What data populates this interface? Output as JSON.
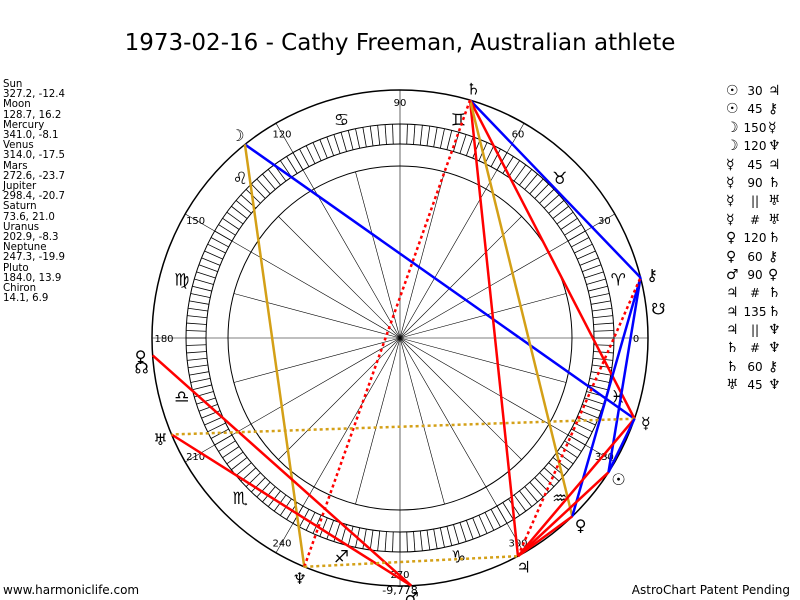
{
  "title": "1973-02-16 - Cathy Freeman, Australian athlete",
  "footer": {
    "left": "www.harmoniclife.com",
    "right": "AstroChart Patent Pending"
  },
  "bottom_readout": "-9,778",
  "positions": [
    {
      "name": "Sun",
      "coords": "327.2, -12.4"
    },
    {
      "name": "Moon",
      "coords": "128.7, 16.2"
    },
    {
      "name": "Mercury",
      "coords": "341.0, -8.1"
    },
    {
      "name": "Venus",
      "coords": "314.0, -17.5"
    },
    {
      "name": "Mars",
      "coords": "272.6, -23.7"
    },
    {
      "name": "Jupiter",
      "coords": "298.4, -20.7"
    },
    {
      "name": "Saturn",
      "coords": "73.6, 21.0"
    },
    {
      "name": "Uranus",
      "coords": "202.9, -8.3"
    },
    {
      "name": "Neptune",
      "coords": "247.3, -19.9"
    },
    {
      "name": "Pluto",
      "coords": "184.0, 13.9"
    },
    {
      "name": "Chiron",
      "coords": "14.1, 6.9"
    }
  ],
  "aspect_list": [
    {
      "p1": "☉",
      "value": "30",
      "p2": "♃"
    },
    {
      "p1": "☉",
      "value": "45",
      "p2": "⚷"
    },
    {
      "p1": "☽",
      "value": "150",
      "p2": "☿"
    },
    {
      "p1": "☽",
      "value": "120",
      "p2": "♆"
    },
    {
      "p1": "☿",
      "value": "45",
      "p2": "♃"
    },
    {
      "p1": "☿",
      "value": "90",
      "p2": "♄"
    },
    {
      "p1": "☿",
      "value": "||",
      "p2": "♅"
    },
    {
      "p1": "☿",
      "value": "#",
      "p2": "♅"
    },
    {
      "p1": "♀",
      "value": "120",
      "p2": "♄"
    },
    {
      "p1": "♀",
      "value": "60",
      "p2": "⚷"
    },
    {
      "p1": "♂",
      "value": "90",
      "p2": "♀"
    },
    {
      "p1": "♃",
      "value": "#",
      "p2": "♄"
    },
    {
      "p1": "♃",
      "value": "135",
      "p2": "♄"
    },
    {
      "p1": "♃",
      "value": "||",
      "p2": "♆"
    },
    {
      "p1": "♄",
      "value": "#",
      "p2": "♆"
    },
    {
      "p1": "♄",
      "value": "60",
      "p2": "⚷"
    },
    {
      "p1": "♅",
      "value": "45",
      "p2": "♆"
    }
  ],
  "chart_data": {
    "type": "polar",
    "ticks": [
      "0",
      "30",
      "60",
      "90",
      "120",
      "150",
      "180",
      "210",
      "240",
      "270",
      "300",
      "330"
    ],
    "signs": [
      {
        "glyph": "♈",
        "lon": 15
      },
      {
        "glyph": "♉",
        "lon": 45
      },
      {
        "glyph": "♊",
        "lon": 75
      },
      {
        "glyph": "♋",
        "lon": 105
      },
      {
        "glyph": "♌",
        "lon": 135
      },
      {
        "glyph": "♍",
        "lon": 165
      },
      {
        "glyph": "♎",
        "lon": 195
      },
      {
        "glyph": "♏",
        "lon": 225
      },
      {
        "glyph": "♐",
        "lon": 255
      },
      {
        "glyph": "♑",
        "lon": 285
      },
      {
        "glyph": "♒",
        "lon": 315
      },
      {
        "glyph": "♓",
        "lon": 345
      }
    ],
    "planets": [
      {
        "id": "sun",
        "glyph": "☉",
        "lon": 327.2
      },
      {
        "id": "moon",
        "glyph": "☽",
        "lon": 128.7
      },
      {
        "id": "mercury",
        "glyph": "☿",
        "lon": 341.0
      },
      {
        "id": "venus",
        "glyph": "♀",
        "lon": 314.0
      },
      {
        "id": "mars",
        "glyph": "♂",
        "lon": 272.6
      },
      {
        "id": "jupiter",
        "glyph": "♃",
        "lon": 298.4
      },
      {
        "id": "saturn",
        "glyph": "♄",
        "lon": 73.6
      },
      {
        "id": "uranus",
        "glyph": "♅",
        "lon": 202.9
      },
      {
        "id": "neptune",
        "glyph": "♆",
        "lon": 247.3
      },
      {
        "id": "pluto",
        "glyph": "♀",
        "lon": 184.0
      },
      {
        "id": "chiron",
        "glyph": "⚷",
        "lon": 14.1
      },
      {
        "id": "node",
        "glyph": "☊",
        "lon": 186.5
      },
      {
        "id": "south-node",
        "glyph": "☋",
        "lon": 6.5
      }
    ],
    "colors": {
      "blue": "#0000ff",
      "red": "#ff0000",
      "orange": "#d4a017",
      "dotted_red": "#ff0000",
      "dotted_orange": "#d4a017"
    },
    "aspect_lines": [
      {
        "from": "moon",
        "to": "mercury",
        "color": "blue",
        "style": "solid"
      },
      {
        "from": "saturn",
        "to": "chiron",
        "color": "blue",
        "style": "solid"
      },
      {
        "from": "mercury",
        "to": "saturn",
        "color": "red",
        "style": "solid"
      },
      {
        "from": "jupiter",
        "to": "saturn",
        "color": "red",
        "style": "solid"
      },
      {
        "from": "moon",
        "to": "neptune",
        "color": "orange",
        "style": "solid"
      },
      {
        "from": "saturn",
        "to": "venus",
        "color": "orange",
        "style": "solid"
      },
      {
        "from": "pluto",
        "to": "mars",
        "color": "red",
        "style": "solid"
      },
      {
        "from": "uranus",
        "to": "mars",
        "color": "red",
        "style": "solid"
      },
      {
        "from": "venus",
        "to": "chiron",
        "color": "blue",
        "style": "solid"
      },
      {
        "from": "sun",
        "to": "chiron",
        "color": "blue",
        "style": "solid"
      },
      {
        "from": "jupiter",
        "to": "sun",
        "color": "red",
        "style": "solid"
      },
      {
        "from": "jupiter",
        "to": "mercury",
        "color": "red",
        "style": "solid"
      },
      {
        "from": "jupiter",
        "to": "venus",
        "color": "red",
        "style": "solid"
      },
      {
        "from": "saturn",
        "to": "neptune",
        "color": "dotted_red",
        "style": "dotted"
      },
      {
        "from": "jupiter",
        "to": "chiron",
        "color": "dotted_red",
        "style": "dotted"
      },
      {
        "from": "mercury",
        "to": "uranus",
        "color": "dotted_orange",
        "style": "dotted"
      },
      {
        "from": "neptune",
        "to": "jupiter",
        "color": "dotted_orange",
        "style": "dotted"
      },
      {
        "from": "sun",
        "to": "mercury",
        "color": "blue",
        "style": "solid"
      }
    ]
  }
}
